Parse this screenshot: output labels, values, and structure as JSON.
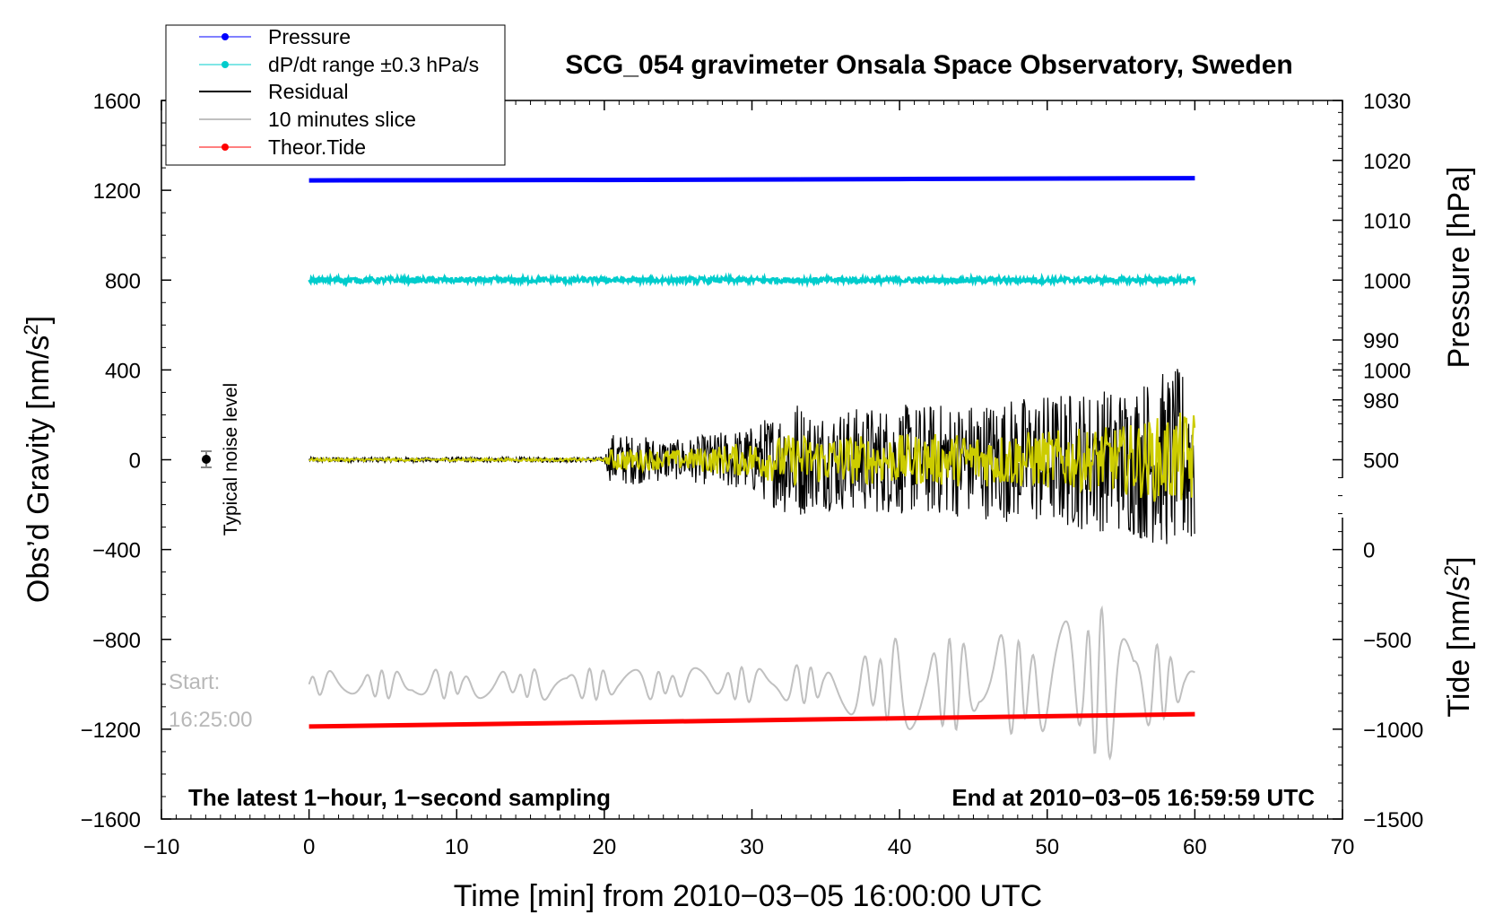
{
  "chart_data": {
    "type": "line",
    "title": "SCG_054 gravimeter Onsala Space Observatory, Sweden",
    "xlabel": "Time [min] from 2010−03−05 16:00:00 UTC",
    "ylabel_left": "Obs’d Gravity [nm/s",
    "ylabel_left_sup": "2",
    "ylabel_left_close": "]",
    "ylabel_right_pressure": "Pressure [hPa]",
    "ylabel_right_tide": "Tide [nm/s",
    "ylabel_right_tide_sup": "2",
    "ylabel_right_tide_close": "]",
    "xlim": [
      -10,
      70
    ],
    "ylim_left": [
      -1600,
      1600
    ],
    "x_ticks": [
      "−10",
      "0",
      "10",
      "20",
      "30",
      "40",
      "50",
      "60",
      "70"
    ],
    "y_ticks_left": [
      "1600",
      "1200",
      "800",
      "400",
      "0",
      "−400",
      "−800",
      "−1200",
      "−1600"
    ],
    "y_ticks_pressure": [
      "1030",
      "1020",
      "1010",
      "1000",
      "990",
      "980"
    ],
    "y_ticks_tide": [
      "1000",
      "500",
      "0",
      "−500",
      "−1000",
      "−1500"
    ],
    "legend": [
      {
        "label": "Pressure",
        "color": "#0000ff",
        "marker": true
      },
      {
        "label": "dP/dt range ±0.3 hPa/s",
        "color": "#00cccc",
        "marker": true
      },
      {
        "label": "Residual",
        "color": "#000000",
        "marker": false
      },
      {
        "label": "10 minutes slice",
        "color": "#c0c0c0",
        "marker": false
      },
      {
        "label": "Theor.Tide",
        "color": "#ff0000",
        "marker": true
      }
    ],
    "annotations": {
      "noise_label": "Typical noise level",
      "start_label": "Start:",
      "start_time": "16:25:00",
      "bottom_left": "The latest 1−hour, 1−second sampling",
      "bottom_right": "End at 2010−03−05 16:59:59 UTC"
    },
    "series": [
      {
        "name": "Pressure",
        "color": "#0000ff",
        "x": [
          0,
          20,
          40,
          60
        ],
        "y": [
          1244,
          1246,
          1250,
          1254
        ]
      },
      {
        "name": "dP/dt range ±0.3 hPa/s",
        "color": "#00cccc",
        "x": [
          0,
          60
        ],
        "y": [
          800,
          800
        ],
        "band": 12
      },
      {
        "name": "Theor.Tide",
        "color": "#ff0000",
        "x": [
          0,
          60
        ],
        "y": [
          -1188,
          -1133
        ]
      },
      {
        "name": "Residual",
        "color": "#000000",
        "envelope": {
          "x": [
            0,
            20,
            20.5,
            25,
            30,
            33,
            34,
            38,
            45,
            50,
            55,
            58,
            60
          ],
          "amp": [
            12,
            12,
            120,
            90,
            150,
            280,
            220,
            240,
            260,
            300,
            330,
            400,
            420
          ]
        }
      },
      {
        "name": "Residual (filtered)",
        "color": "#cccc00",
        "envelope": {
          "x": [
            0,
            20,
            20.5,
            25,
            30,
            33,
            34,
            38,
            45,
            50,
            55,
            58,
            60
          ],
          "amp": [
            6,
            6,
            50,
            45,
            80,
            120,
            110,
            110,
            120,
            130,
            150,
            200,
            220
          ]
        }
      },
      {
        "name": "10 minutes slice",
        "color": "#c0c0c0",
        "center": -1000,
        "envelope": {
          "x": [
            0,
            15,
            25,
            35,
            40,
            45,
            50,
            53,
            55,
            58,
            60
          ],
          "amp": [
            60,
            70,
            70,
            90,
            220,
            200,
            260,
            380,
            300,
            150,
            80
          ]
        }
      }
    ]
  }
}
